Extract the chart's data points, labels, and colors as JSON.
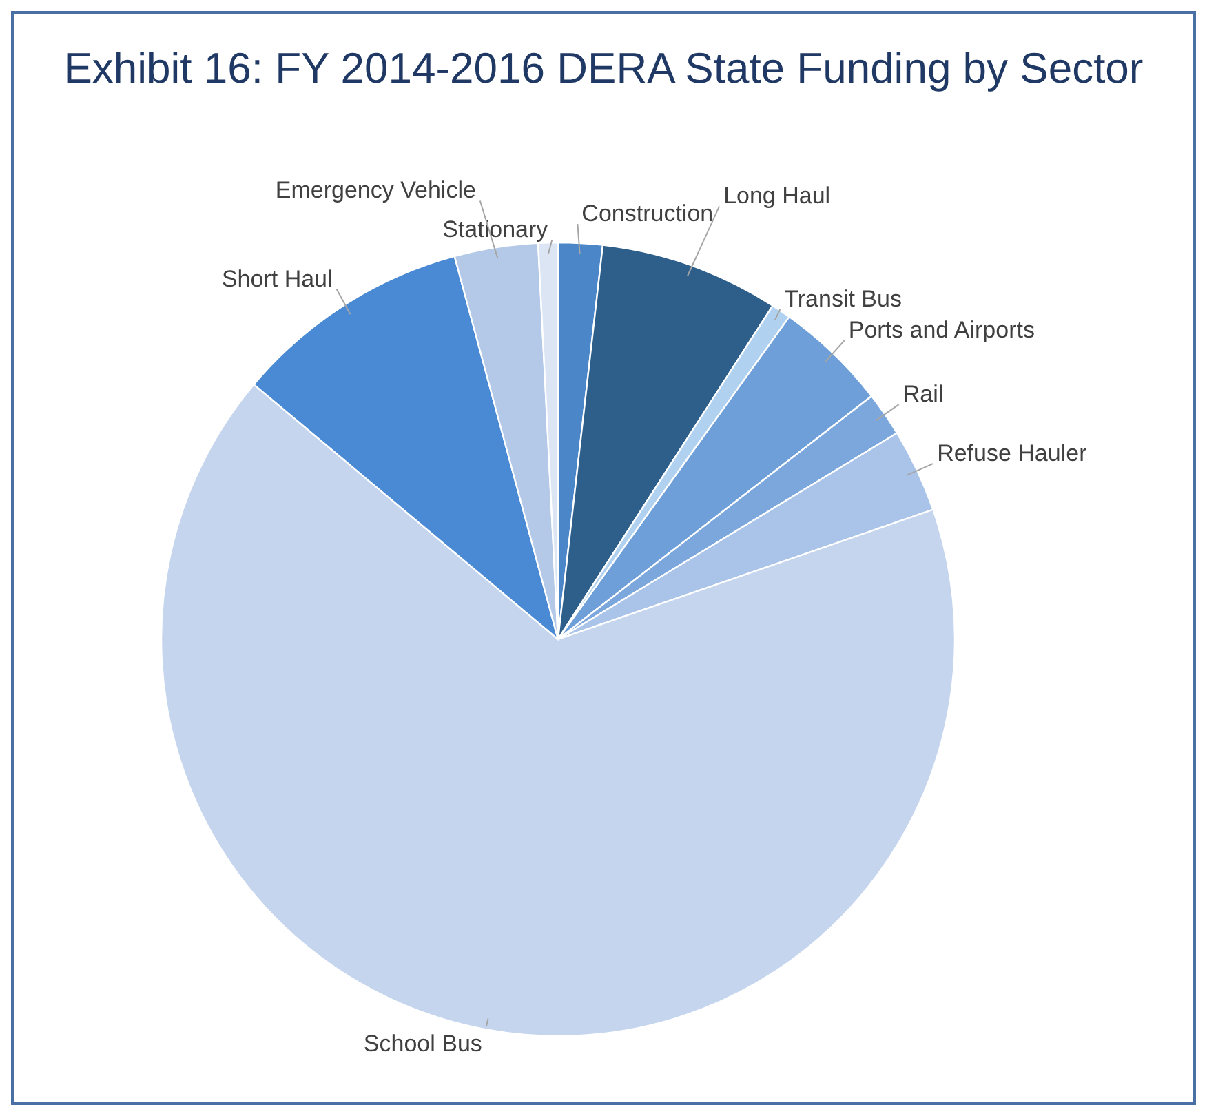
{
  "chart_data": {
    "type": "pie",
    "title": "Exhibit 16: FY 2014-2016 DERA State Funding by Sector",
    "categories": [
      "Construction",
      "Long Haul",
      "Transit Bus",
      "Ports and Airports",
      "Rail",
      "Refuse Hauler",
      "School Bus",
      "Short Haul",
      "Emergency Vehicle",
      "Stationary"
    ],
    "values": [
      1.8,
      7.3,
      0.8,
      4.6,
      1.8,
      3.4,
      66.4,
      9.7,
      3.4,
      0.8
    ],
    "colors": [
      "#4a86c8",
      "#2e5f8a",
      "#b0d2f0",
      "#6f9fd8",
      "#7ba7dc",
      "#a9c4e8",
      "#c5d5ee",
      "#4a8ad4",
      "#b4c9e8",
      "#dbe5f4"
    ],
    "legend": false
  }
}
